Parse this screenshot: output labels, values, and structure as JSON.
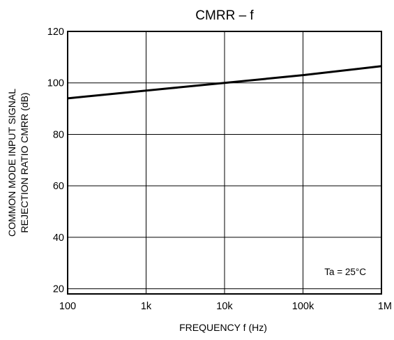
{
  "chart_data": {
    "type": "line",
    "title": "CMRR  –  f",
    "xlabel": "FREQUENCY   f    (Hz)",
    "ylabel_line1": "COMMON MODE INPUT SIGNAL",
    "ylabel_line2": "REJECTION RATIO   CMRR   (dB)",
    "x_scale": "log",
    "xlim": [
      100,
      1000000
    ],
    "ylim": [
      18,
      120
    ],
    "x_ticks": [
      {
        "value": 100,
        "label": "100"
      },
      {
        "value": 1000,
        "label": "1k"
      },
      {
        "value": 10000,
        "label": "10k"
      },
      {
        "value": 100000,
        "label": "100k"
      },
      {
        "value": 1000000,
        "label": "1M"
      }
    ],
    "y_ticks": [
      {
        "value": 20,
        "label": "20"
      },
      {
        "value": 40,
        "label": "40"
      },
      {
        "value": 60,
        "label": "60"
      },
      {
        "value": 80,
        "label": "80"
      },
      {
        "value": 100,
        "label": "100"
      },
      {
        "value": 120,
        "label": "120"
      }
    ],
    "grid": true,
    "annotation": "Ta = 25°C",
    "series": [
      {
        "x": [
          100,
          1000,
          10000,
          100000,
          1000000
        ],
        "y": [
          94,
          97,
          100,
          103,
          106.5
        ]
      }
    ]
  },
  "colors": {
    "line": "#000000",
    "grid": "#000000",
    "background": "#ffffff"
  }
}
